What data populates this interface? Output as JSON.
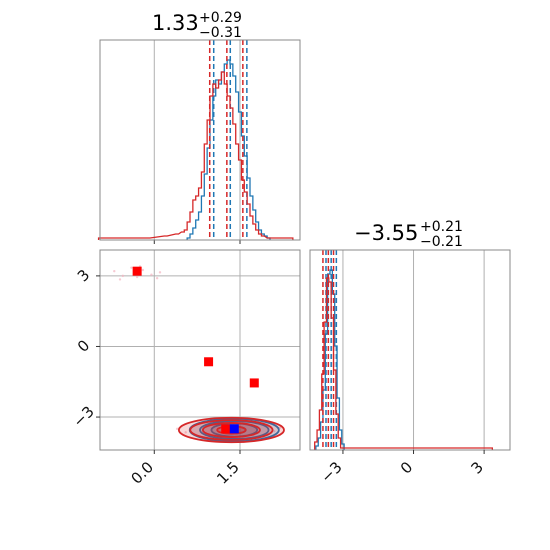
{
  "colors": {
    "series_a": "#1f77b4",
    "series_b": "#d62728",
    "marker_red": "#ff0000",
    "marker_blue": "#0000ff",
    "grid": "#b0b0b0",
    "frame": "#888888"
  },
  "chart_data": {
    "type": "corner",
    "panels": [
      {
        "id": "hist_p1",
        "type": "histogram",
        "title": {
          "median": "1.33",
          "plus": "+0.29",
          "minus": "−0.31"
        },
        "xlim": [
          -0.95,
          2.55
        ],
        "grid": true,
        "series": [
          {
            "color": "#1f77b4",
            "bins": [
              [
                0.6,
                1
              ],
              [
                0.65,
                3
              ],
              [
                0.7,
                6
              ],
              [
                0.75,
                10
              ],
              [
                0.8,
                14
              ],
              [
                0.85,
                22
              ],
              [
                0.9,
                33
              ],
              [
                0.95,
                46
              ],
              [
                1.0,
                60
              ],
              [
                1.05,
                72
              ],
              [
                1.1,
                80
              ],
              [
                1.15,
                78
              ],
              [
                1.2,
                84
              ],
              [
                1.25,
                88
              ],
              [
                1.3,
                90
              ],
              [
                1.35,
                88
              ],
              [
                1.4,
                82
              ],
              [
                1.45,
                74
              ],
              [
                1.5,
                64
              ],
              [
                1.55,
                52
              ],
              [
                1.6,
                42
              ],
              [
                1.65,
                31
              ],
              [
                1.7,
                22
              ],
              [
                1.75,
                15
              ],
              [
                1.8,
                9
              ],
              [
                1.85,
                5
              ],
              [
                1.9,
                3
              ],
              [
                1.95,
                2
              ],
              [
                2.0,
                1
              ]
            ],
            "quantiles": [
              1.04,
              1.33,
              1.62
            ]
          },
          {
            "color": "#d62728",
            "bins": [
              [
                -0.95,
                1
              ],
              [
                -0.6,
                1
              ],
              [
                -0.4,
                1
              ],
              [
                -0.1,
                1
              ],
              [
                0.2,
                2
              ],
              [
                0.4,
                3
              ],
              [
                0.5,
                4
              ],
              [
                0.55,
                5
              ],
              [
                0.6,
                9
              ],
              [
                0.65,
                14
              ],
              [
                0.7,
                20
              ],
              [
                0.75,
                22
              ],
              [
                0.8,
                26
              ],
              [
                0.85,
                34
              ],
              [
                0.9,
                48
              ],
              [
                0.95,
                60
              ],
              [
                1.0,
                72
              ],
              [
                1.05,
                78
              ],
              [
                1.1,
                76
              ],
              [
                1.15,
                80
              ],
              [
                1.2,
                84
              ],
              [
                1.25,
                78
              ],
              [
                1.3,
                72
              ],
              [
                1.35,
                66
              ],
              [
                1.4,
                58
              ],
              [
                1.45,
                48
              ],
              [
                1.5,
                40
              ],
              [
                1.55,
                30
              ],
              [
                1.6,
                24
              ],
              [
                1.65,
                18
              ],
              [
                1.7,
                12
              ],
              [
                1.75,
                8
              ],
              [
                1.8,
                5
              ],
              [
                1.85,
                3
              ],
              [
                1.9,
                2
              ],
              [
                2.0,
                1
              ],
              [
                2.2,
                1
              ],
              [
                2.4,
                1
              ]
            ],
            "quantiles": [
              0.97,
              1.27,
              1.55
            ]
          }
        ],
        "vlines": [
          0.97,
          1.04,
          1.12,
          1.27,
          1.33,
          1.55,
          1.62
        ]
      },
      {
        "id": "scatter_p12",
        "type": "2d_density",
        "xlim": [
          -0.95,
          2.55
        ],
        "ylim": [
          -4.4,
          4.1
        ],
        "xticks": [
          0.0,
          1.5
        ],
        "xticklabels": [
          "0.0",
          "1.5"
        ],
        "yticks": [
          -3,
          0,
          3
        ],
        "yticklabels": [
          "−3",
          "0",
          "3"
        ],
        "grid": true,
        "contours": [
          {
            "color": "#1f77b4",
            "cx": 1.4,
            "cy": -3.55,
            "levels": [
              [
                0.2,
                0.15
              ],
              [
                0.4,
                0.28
              ],
              [
                0.6,
                0.38
              ],
              [
                0.78,
                0.48
              ]
            ]
          },
          {
            "color": "#d62728",
            "cx": 1.35,
            "cy": -3.55,
            "levels": [
              [
                0.25,
                0.16
              ],
              [
                0.5,
                0.3
              ],
              [
                0.72,
                0.42
              ],
              [
                0.92,
                0.52
              ]
            ]
          }
        ],
        "scatter_faint": [
          [
            -0.7,
            3.2
          ],
          [
            -0.55,
            3.0
          ],
          [
            -0.4,
            3.35
          ],
          [
            -0.3,
            2.95
          ],
          [
            -0.2,
            3.25
          ],
          [
            -0.05,
            3.05
          ],
          [
            0.1,
            3.15
          ],
          [
            -0.6,
            2.85
          ],
          [
            -0.25,
            3.4
          ],
          [
            0.05,
            2.9
          ],
          [
            2.1,
            -3.6
          ],
          [
            2.2,
            -3.45
          ],
          [
            0.55,
            -3.65
          ],
          [
            0.4,
            -3.5
          ]
        ],
        "markers_red": [
          [
            -0.3,
            3.2
          ],
          [
            0.95,
            -0.65
          ],
          [
            1.75,
            -1.55
          ],
          [
            1.25,
            -3.5
          ]
        ],
        "marker_blue": [
          1.4,
          -3.5
        ]
      },
      {
        "id": "hist_p2",
        "type": "histogram",
        "title": {
          "median": "−3.55",
          "plus": "+0.21",
          "minus": "−0.21"
        },
        "xlim": [
          -4.4,
          4.1
        ],
        "xticks": [
          -3,
          0,
          3
        ],
        "xticklabels": [
          "−3",
          "0",
          "3"
        ],
        "grid": true,
        "series": [
          {
            "color": "#1f77b4",
            "bins": [
              [
                -4.1,
                2
              ],
              [
                -4.0,
                6
              ],
              [
                -3.9,
                14
              ],
              [
                -3.8,
                30
              ],
              [
                -3.7,
                58
              ],
              [
                -3.6,
                88
              ],
              [
                -3.5,
                90
              ],
              [
                -3.4,
                78
              ],
              [
                -3.3,
                52
              ],
              [
                -3.2,
                26
              ],
              [
                -3.1,
                10
              ],
              [
                -3.0,
                3
              ]
            ],
            "quantiles": [
              -3.72,
              -3.5,
              -3.28
            ]
          },
          {
            "color": "#d62728",
            "bins": [
              [
                -4.15,
                4
              ],
              [
                -4.05,
                10
              ],
              [
                -3.95,
                20
              ],
              [
                -3.85,
                38
              ],
              [
                -3.75,
                64
              ],
              [
                -3.65,
                86
              ],
              [
                -3.55,
                84
              ],
              [
                -3.45,
                66
              ],
              [
                -3.35,
                40
              ],
              [
                -3.25,
                18
              ],
              [
                -3.15,
                6
              ],
              [
                -3.05,
                1
              ],
              [
                3.2,
                1
              ],
              [
                3.3,
                1
              ]
            ],
            "quantiles": [
              -3.85,
              -3.62,
              -3.4
            ]
          }
        ],
        "vlines": [
          -3.85,
          -3.72,
          -3.62,
          -3.5,
          -3.4,
          -3.28
        ]
      }
    ]
  }
}
